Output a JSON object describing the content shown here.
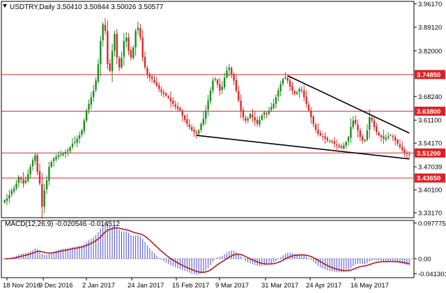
{
  "colors": {
    "background": "#ffffff",
    "candle_up": "#1f8a1f",
    "candle_down": "#d42a2a",
    "level_line": "#d42a2a",
    "trend_line": "#000000",
    "macd_hist": "#4a4ad4",
    "macd_signal": "#b01c1c",
    "zero_line": "#888888",
    "level_tag_bg": "#e02020"
  },
  "chart_data": [
    {
      "type": "candlestick",
      "symbol": "USDTRY",
      "timeframe": "Daily",
      "ohlc_header": [
        "3.50410",
        "3.50844",
        "3.50026",
        "3.50577"
      ],
      "ylim": [
        3.317,
        3.969
      ],
      "y_ticks": [
        "3.96170",
        "3.89120",
        "3.82000",
        "3.68240",
        "3.61100",
        "3.54170",
        "3.47039",
        "3.40100",
        "3.33170"
      ],
      "x_ticks": [
        "18 Nov 2016",
        "9 Dec 2016",
        "2 Jan 2017",
        "24 Jan 2017",
        "15 Feb 2017",
        "9 Mar 2017",
        "31 Mar 2017",
        "24 Apr 2017",
        "16 May 2017"
      ],
      "levels": [
        {
          "label": "3.74850",
          "value": 3.7485
        },
        {
          "label": "3.63800",
          "value": 3.638
        },
        {
          "label": "3.51200",
          "value": 3.512
        },
        {
          "label": "3.43650",
          "value": 3.4365
        }
      ],
      "trendlines": [
        {
          "name": "upper",
          "from": {
            "bar": 121,
            "price": 3.745
          },
          "to": {
            "bar": 173,
            "price": 3.572
          }
        },
        {
          "name": "lower",
          "from": {
            "bar": 82,
            "price": 3.565
          },
          "to": {
            "bar": 173,
            "price": 3.494
          }
        }
      ],
      "closes": [
        3.37,
        3.375,
        3.385,
        3.398,
        3.405,
        3.42,
        3.44,
        3.432,
        3.42,
        3.43,
        3.448,
        3.47,
        3.49,
        3.505,
        3.455,
        3.42,
        3.35,
        3.4,
        3.43,
        3.47,
        3.485,
        3.495,
        3.5,
        3.505,
        3.507,
        3.51,
        3.515,
        3.52,
        3.53,
        3.54,
        3.545,
        3.555,
        3.565,
        3.58,
        3.61,
        3.64,
        3.66,
        3.68,
        3.7,
        3.73,
        3.78,
        3.85,
        3.9,
        3.88,
        3.78,
        3.76,
        3.82,
        3.87,
        3.8,
        3.77,
        3.8,
        3.85,
        3.86,
        3.82,
        3.8,
        3.83,
        3.88,
        3.89,
        3.86,
        3.8,
        3.77,
        3.75,
        3.74,
        3.735,
        3.725,
        3.715,
        3.705,
        3.695,
        3.69,
        3.685,
        3.678,
        3.668,
        3.66,
        3.652,
        3.645,
        3.64,
        3.625,
        3.612,
        3.6,
        3.59,
        3.58,
        3.575,
        3.57,
        3.58,
        3.6,
        3.615,
        3.64,
        3.67,
        3.7,
        3.73,
        3.735,
        3.72,
        3.7,
        3.712,
        3.74,
        3.76,
        3.77,
        3.75,
        3.73,
        3.7,
        3.67,
        3.64,
        3.62,
        3.61,
        3.615,
        3.63,
        3.62,
        3.61,
        3.6,
        3.612,
        3.625,
        3.635,
        3.63,
        3.64,
        3.65,
        3.66,
        3.68,
        3.7,
        3.72,
        3.735,
        3.74,
        3.73,
        3.712,
        3.7,
        3.69,
        3.695,
        3.705,
        3.7,
        3.68,
        3.66,
        3.64,
        3.62,
        3.6,
        3.582,
        3.57,
        3.565,
        3.562,
        3.555,
        3.55,
        3.548,
        3.545,
        3.54,
        3.535,
        3.53,
        3.528,
        3.535,
        3.545,
        3.56,
        3.59,
        3.61,
        3.6,
        3.58,
        3.56,
        3.55,
        3.552,
        3.58,
        3.62,
        3.61,
        3.59,
        3.575,
        3.565,
        3.56,
        3.555,
        3.558,
        3.562,
        3.565,
        3.56,
        3.55,
        3.54,
        3.53,
        3.52,
        3.512,
        3.508,
        3.5058
      ],
      "macd": {
        "label": "MACD(12,26,9) -0.020546 -0.014512",
        "ylim": [
          -0.052,
          0.105
        ],
        "y_ticks": [
          "0.097775",
          "0.00",
          "-0.041301"
        ]
      }
    }
  ]
}
